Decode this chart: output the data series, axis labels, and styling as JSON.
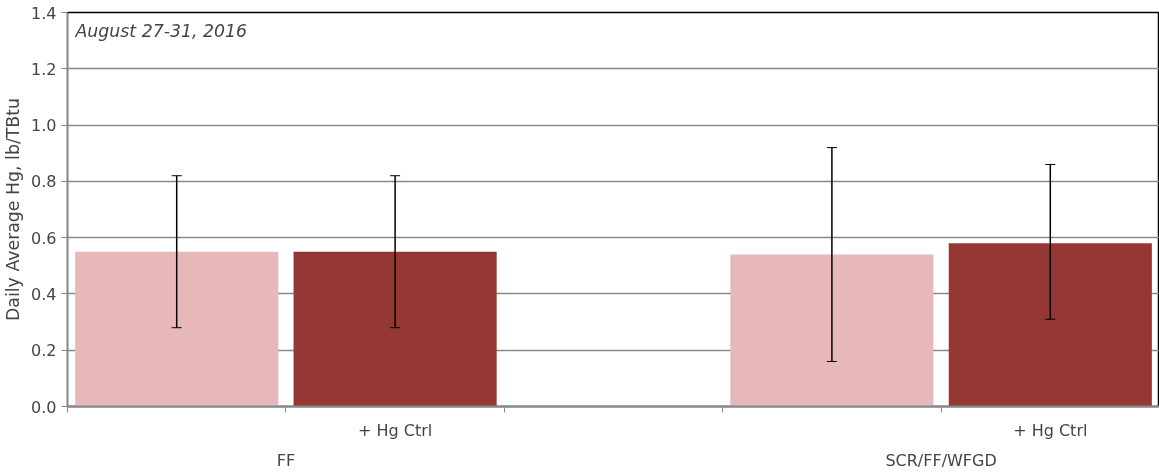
{
  "chart_data": {
    "type": "bar",
    "title": "August 27-31, 2016",
    "ylabel": "Daily Average Hg, lb/TBtu",
    "categories": [
      null,
      "+ Hg Ctrl",
      null,
      null,
      "+ Hg Ctrl"
    ],
    "values": [
      0.55,
      0.55,
      null,
      0.54,
      0.58
    ],
    "colors": [
      "#e6b8b7",
      "#953735",
      null,
      "#e6b8b7",
      "#953735"
    ],
    "errors": [
      [
        0.28,
        0.82
      ],
      [
        0.28,
        0.82
      ],
      null,
      [
        0.16,
        0.92
      ],
      [
        0.31,
        0.86
      ]
    ],
    "annotations": [
      "FF",
      "SCR/FF/WFGD"
    ],
    "ylim": [
      0,
      1.4
    ],
    "yticks": [
      {
        "value": 0,
        "label": "0.0"
      },
      0.2,
      0.4,
      0.6,
      0.8,
      {
        "value": 1,
        "label": "1.0"
      },
      1.2,
      1.4
    ],
    "grid": "y"
  }
}
